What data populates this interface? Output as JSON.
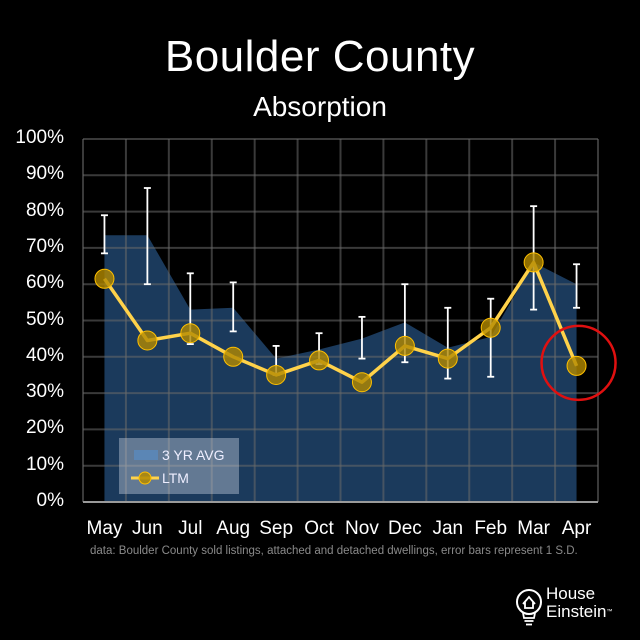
{
  "header": {
    "title": "Boulder County",
    "subtitle": "Absorption"
  },
  "footnote": "data: Boulder County sold listings, attached and detached dwellings, error bars represent 1 S.D.",
  "logo": {
    "line1": "House",
    "line2": "Einstein",
    "tm": "™",
    "icon": "lightbulb-house-icon"
  },
  "legend": {
    "area_label": "3 YR AVG",
    "line_label": "LTM"
  },
  "colors": {
    "background": "#000000",
    "grid": "#3a3a3a",
    "area": "#1b3a5c",
    "line": "#ffd24a",
    "marker_fill": "#b38a00",
    "error_bar": "#ffffff",
    "highlight_circle": "#e01010"
  },
  "axis": {
    "y_ticks": [
      "100%",
      "90%",
      "80%",
      "70%",
      "60%",
      "50%",
      "40%",
      "30%",
      "20%",
      "10%",
      "0%"
    ],
    "x_ticks": [
      "May",
      "Jun",
      "Jul",
      "Aug",
      "Sep",
      "Oct",
      "Nov",
      "Dec",
      "Jan",
      "Feb",
      "Mar",
      "Apr"
    ]
  },
  "chart_data": {
    "type": "line",
    "title": "Boulder County",
    "subtitle": "Absorption",
    "xlabel": "",
    "ylabel": "",
    "ylim": [
      0,
      100
    ],
    "y_format": "percent",
    "grid": true,
    "legend_position": "lower-left inside",
    "categories": [
      "May",
      "Jun",
      "Jul",
      "Aug",
      "Sep",
      "Oct",
      "Nov",
      "Dec",
      "Jan",
      "Feb",
      "Mar",
      "Apr"
    ],
    "series": [
      {
        "name": "3 YR AVG",
        "type": "area",
        "values": [
          73.5,
          73.5,
          53,
          53.5,
          39.5,
          42,
          45,
          49.5,
          42.5,
          45.5,
          66,
          60
        ],
        "error_bars_upper": [
          79,
          86.5,
          63,
          60.5,
          43,
          46.5,
          51,
          60,
          53.5,
          56,
          81.5,
          65.5
        ],
        "error_bars_lower": [
          68.5,
          60,
          43.5,
          47,
          35,
          38,
          39.5,
          38.5,
          34,
          34.5,
          53,
          53.5
        ]
      },
      {
        "name": "LTM",
        "type": "line",
        "values": [
          61.5,
          44.5,
          46.5,
          40,
          35,
          39,
          33,
          43,
          39.5,
          48,
          66,
          37.5
        ]
      }
    ],
    "annotations": [
      {
        "type": "circle",
        "target": "Apr",
        "color": "#e01010",
        "note": "highlighted latest LTM point"
      }
    ],
    "footnote": "data: Boulder County sold listings, attached and detached dwellings, error bars represent 1 S.D."
  }
}
